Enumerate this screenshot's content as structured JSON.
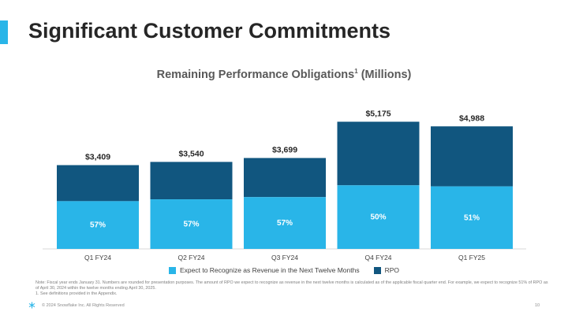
{
  "slide": {
    "title": "Significant Customer Commitments",
    "page_number": "10",
    "copyright": "© 2024 Snowflake Inc. All Rights Reserved",
    "accent_color": "#29B5E8",
    "logo_icon": "snowflake-icon",
    "footnote": "Note: Fiscal year ends January 31. Numbers are rounded for presentation purposes. The amount of RPO we expect to recognize as revenue in the next twelve months is calculated as of the applicable fiscal quarter end. For example, we expect to recognize 51% of RPO as of April 30, 2024 within the twelve months ending April 30, 2025.",
    "footnote_definitions": "1.  See definitions provided in the Appendix."
  },
  "chart_data": {
    "type": "bar",
    "stacked": true,
    "title": "Remaining Performance Obligations",
    "title_superscript": "1",
    "title_suffix": "(Millions)",
    "categories": [
      "Q1 FY24",
      "Q2 FY24",
      "Q3 FY24",
      "Q4 FY24",
      "Q1 FY25"
    ],
    "totals": [
      3409,
      3540,
      3699,
      5175,
      4988
    ],
    "total_labels": [
      "$3,409",
      "$3,540",
      "$3,699",
      "$5,175",
      "$4,988"
    ],
    "next_twelve_months_pct": [
      57,
      57,
      57,
      50,
      51
    ],
    "pct_labels": [
      "57%",
      "57%",
      "57%",
      "50%",
      "51%"
    ],
    "series": [
      {
        "name": "Expect to Recognize as Revenue in the Next Twelve Months",
        "color": "#29B5E8"
      },
      {
        "name": "RPO",
        "color": "#11567F"
      }
    ],
    "ylim": [
      0,
      5500
    ],
    "legend_position": "bottom",
    "grid": false,
    "xlabel": "",
    "ylabel": ""
  }
}
